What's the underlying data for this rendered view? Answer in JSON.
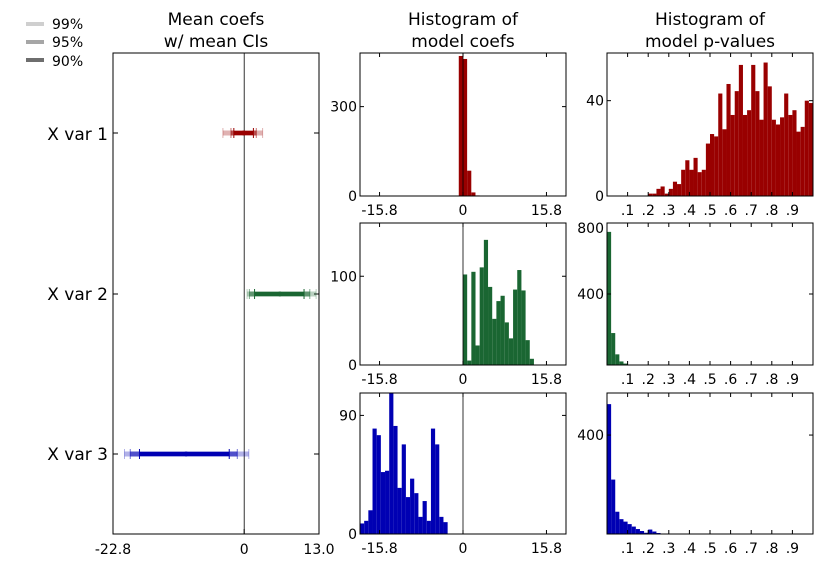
{
  "legend": [
    {
      "label": "99%",
      "color": "#cfcfcf"
    },
    {
      "label": "95%",
      "color": "#a6a6a6"
    },
    {
      "label": "90%",
      "color": "#6e6e6e"
    }
  ],
  "colors": {
    "var1": "#990000",
    "var2": "#1a6632",
    "var3": "#0000b3"
  },
  "chart_data": [
    {
      "type": "errorbar",
      "title_line1": "Mean coefs",
      "title_line2": "w/ mean CIs",
      "xlim": [
        -22.8,
        13.0
      ],
      "xticks": [
        {
          "label": "-22.8",
          "value": -22.8
        },
        {
          "label": "0",
          "value": 0
        },
        {
          "label": "13.0",
          "value": 13.0
        }
      ],
      "categories": [
        "X var 1",
        "X var 2",
        "X var 3"
      ],
      "series": [
        {
          "mean": -0.1,
          "ci90": [
            -1.8,
            1.6
          ],
          "ci95": [
            -2.3,
            2.1
          ],
          "ci99": [
            -3.7,
            3.2
          ]
        },
        {
          "mean": 6.2,
          "ci90": [
            1.8,
            10.4
          ],
          "ci95": [
            0.9,
            11.4
          ],
          "ci99": [
            0.5,
            12.5
          ]
        },
        {
          "mean": -10.1,
          "ci90": [
            -18.2,
            -2.6
          ],
          "ci95": [
            -19.8,
            -1.2
          ],
          "ci99": [
            -20.8,
            0.8
          ]
        }
      ]
    },
    {
      "type": "histogram",
      "title_line1": "Histogram of",
      "title_line2": "model coefs",
      "xlim": [
        -19.5,
        19.5
      ],
      "xticks": [
        {
          "label": "-15.8",
          "value": -15.8
        },
        {
          "label": "0",
          "value": 0
        },
        {
          "label": "15.8",
          "value": 15.8
        }
      ],
      "panels": [
        {
          "ylim": [
            0,
            480
          ],
          "yticks": [
            {
              "label": "300",
              "value": 300
            },
            {
              "label": "0",
              "value": 0
            }
          ],
          "bin_start": -0.8,
          "bin_width": 0.79,
          "counts": [
            470,
            460,
            85,
            12,
            2
          ]
        },
        {
          "ylim": [
            0,
            160
          ],
          "yticks": [
            {
              "label": "100",
              "value": 100
            },
            {
              "label": "0",
              "value": 0
            }
          ],
          "bin_start": 0.0,
          "bin_width": 0.79,
          "counts": [
            102,
            5,
            105,
            22,
            110,
            141,
            88,
            52,
            72,
            78,
            48,
            30,
            85,
            107,
            84,
            28,
            7
          ]
        },
        {
          "ylim": [
            0,
            107
          ],
          "yticks": [
            {
              "label": "90",
              "value": 90
            },
            {
              "label": "0",
              "value": 0
            }
          ],
          "bin_start": -19.5,
          "bin_width": 0.79,
          "counts": [
            8,
            10,
            18,
            80,
            75,
            47,
            48,
            108,
            82,
            35,
            68,
            28,
            42,
            31,
            13,
            25,
            10,
            80,
            68,
            13,
            9
          ]
        }
      ]
    },
    {
      "type": "histogram",
      "title_line1": "Histogram of",
      "title_line2": "model p-values",
      "xlim": [
        0,
        1
      ],
      "xticks": [
        {
          "label": ".1",
          "value": 0.1
        },
        {
          "label": ".2",
          "value": 0.2
        },
        {
          "label": ".3",
          "value": 0.3
        },
        {
          "label": ".4",
          "value": 0.4
        },
        {
          "label": ".5",
          "value": 0.5
        },
        {
          "label": ".6",
          "value": 0.6
        },
        {
          "label": ".7",
          "value": 0.7
        },
        {
          "label": ".8",
          "value": 0.8
        },
        {
          "label": ".9",
          "value": 0.9
        }
      ],
      "panels": [
        {
          "ylim": [
            0,
            60
          ],
          "yticks": [
            {
              "label": "40",
              "value": 40
            },
            {
              "label": "0",
              "value": 0
            }
          ],
          "bin_start": 0.0,
          "bin_width": 0.02,
          "counts": [
            0,
            0,
            0,
            0,
            0,
            0,
            0,
            0,
            0,
            0,
            1,
            1,
            3,
            4,
            1,
            3,
            6,
            5,
            11,
            15,
            11,
            16,
            10,
            11,
            22,
            26,
            25,
            43,
            28,
            47,
            34,
            44,
            55,
            34,
            36,
            55,
            44,
            32,
            56,
            46,
            32,
            30,
            33,
            43,
            34,
            36,
            27,
            29,
            40,
            39
          ]
        },
        {
          "ylim": [
            0,
            800
          ],
          "yticks": [
            {
              "label": "800",
              "value": 800
            },
            {
              "label": "400",
              "value": 400
            }
          ],
          "bin_start": 0.0,
          "bin_width": 0.02,
          "counts": [
            750,
            180,
            60,
            20,
            8,
            2
          ]
        },
        {
          "ylim": [
            0,
            570
          ],
          "yticks": [
            {
              "label": "400",
              "value": 400
            }
          ],
          "bin_start": 0.0,
          "bin_width": 0.02,
          "counts": [
            525,
            220,
            90,
            60,
            50,
            40,
            30,
            20,
            12,
            5,
            18,
            10,
            4,
            2
          ]
        }
      ]
    }
  ]
}
